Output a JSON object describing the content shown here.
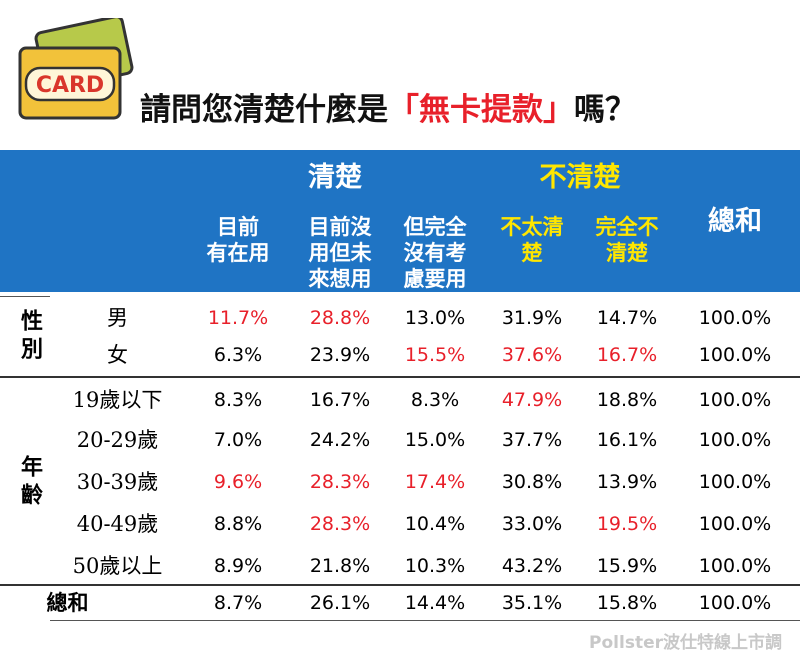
{
  "header": {
    "icon_text": "CARD",
    "title_before": "請問您清楚什麼是",
    "title_highlight": "「無卡提款」",
    "title_after": "嗎？"
  },
  "table": {
    "groups": [
      "清楚",
      "不清楚"
    ],
    "columns": [
      [
        "目前",
        "有在用"
      ],
      [
        "目前沒",
        "用但未",
        "來想用"
      ],
      [
        "但完全",
        "沒有考",
        "慮要用"
      ],
      [
        "不太清",
        "楚"
      ],
      [
        "完全不",
        "清楚"
      ],
      [
        "總和"
      ]
    ],
    "row_groups": [
      {
        "label": "性別",
        "rows": [
          {
            "label": "男",
            "cells": [
              "11.7%",
              "28.8%",
              "13.0%",
              "31.9%",
              "14.7%",
              "100.0%"
            ],
            "red": [
              0,
              1
            ]
          },
          {
            "label": "女",
            "cells": [
              "6.3%",
              "23.9%",
              "15.5%",
              "37.6%",
              "16.7%",
              "100.0%"
            ],
            "red": [
              2,
              3,
              4
            ]
          }
        ]
      },
      {
        "label": "年齡",
        "rows": [
          {
            "label": "19歲以下",
            "cells": [
              "8.3%",
              "16.7%",
              "8.3%",
              "47.9%",
              "18.8%",
              "100.0%"
            ],
            "red": [
              3
            ]
          },
          {
            "label": "20-29歲",
            "cells": [
              "7.0%",
              "24.2%",
              "15.0%",
              "37.7%",
              "16.1%",
              "100.0%"
            ],
            "red": []
          },
          {
            "label": "30-39歲",
            "cells": [
              "9.6%",
              "28.3%",
              "17.4%",
              "30.8%",
              "13.9%",
              "100.0%"
            ],
            "red": [
              0,
              1,
              2
            ]
          },
          {
            "label": "40-49歲",
            "cells": [
              "8.8%",
              "28.3%",
              "10.4%",
              "33.0%",
              "19.5%",
              "100.0%"
            ],
            "red": [
              1,
              4
            ]
          },
          {
            "label": "50歲以上",
            "cells": [
              "8.9%",
              "21.8%",
              "10.3%",
              "43.2%",
              "15.9%",
              "100.0%"
            ],
            "red": []
          }
        ]
      }
    ],
    "total": {
      "label": "總和",
      "cells": [
        "8.7%",
        "26.1%",
        "14.4%",
        "35.1%",
        "15.8%",
        "100.0%"
      ]
    }
  },
  "footer": {
    "watermark": "Pollster波仕特線上市調"
  }
}
